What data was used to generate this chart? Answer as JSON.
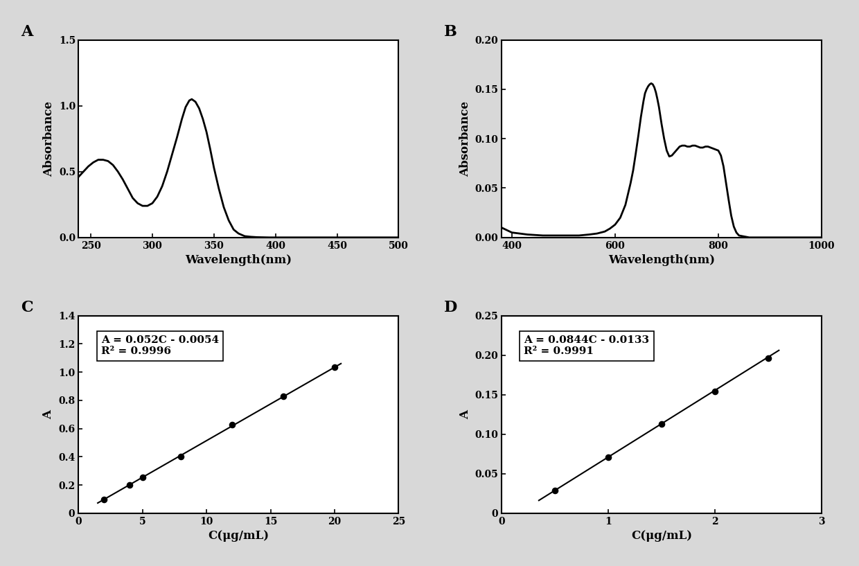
{
  "panel_A": {
    "label": "A",
    "xlabel": "Wavelength(nm)",
    "ylabel": "Absorbance",
    "xlim": [
      240,
      500
    ],
    "ylim": [
      0,
      1.5
    ],
    "xticks": [
      250,
      300,
      350,
      400,
      450,
      500
    ],
    "yticks": [
      0.0,
      0.5,
      1.0,
      1.5
    ],
    "x": [
      240,
      248,
      252,
      256,
      260,
      264,
      268,
      272,
      276,
      280,
      284,
      288,
      292,
      296,
      300,
      304,
      308,
      312,
      316,
      320,
      324,
      327,
      330,
      332,
      335,
      338,
      341,
      344,
      347,
      350,
      354,
      358,
      362,
      366,
      370,
      375,
      380,
      385,
      390,
      395,
      400,
      420,
      440,
      460,
      480,
      500
    ],
    "y": [
      0.46,
      0.54,
      0.57,
      0.59,
      0.59,
      0.58,
      0.55,
      0.5,
      0.44,
      0.37,
      0.3,
      0.26,
      0.24,
      0.24,
      0.26,
      0.31,
      0.39,
      0.5,
      0.63,
      0.76,
      0.9,
      0.99,
      1.04,
      1.05,
      1.03,
      0.98,
      0.9,
      0.8,
      0.67,
      0.53,
      0.37,
      0.23,
      0.13,
      0.06,
      0.03,
      0.01,
      0.005,
      0.002,
      0.001,
      0.0,
      0.0,
      0.0,
      0.0,
      0.0,
      0.0,
      0.0
    ]
  },
  "panel_B": {
    "label": "B",
    "xlabel": "Wavelength(nm)",
    "ylabel": "Absorbance",
    "xlim": [
      380,
      1000
    ],
    "ylim": [
      0,
      0.2
    ],
    "xticks": [
      400,
      600,
      800,
      1000
    ],
    "yticks": [
      0.0,
      0.05,
      0.1,
      0.15,
      0.2
    ],
    "x": [
      380,
      400,
      430,
      460,
      490,
      510,
      530,
      550,
      565,
      580,
      590,
      600,
      610,
      620,
      630,
      635,
      640,
      645,
      650,
      655,
      658,
      661,
      664,
      667,
      670,
      673,
      676,
      679,
      682,
      685,
      690,
      695,
      700,
      705,
      710,
      715,
      720,
      725,
      730,
      735,
      740,
      745,
      750,
      755,
      760,
      765,
      770,
      775,
      780,
      785,
      790,
      795,
      800,
      805,
      810,
      815,
      820,
      825,
      830,
      835,
      840,
      850,
      860,
      870,
      880,
      900,
      920,
      950,
      980,
      1000
    ],
    "y": [
      0.01,
      0.005,
      0.003,
      0.002,
      0.002,
      0.002,
      0.002,
      0.003,
      0.004,
      0.006,
      0.009,
      0.013,
      0.02,
      0.033,
      0.055,
      0.068,
      0.085,
      0.103,
      0.122,
      0.138,
      0.146,
      0.15,
      0.153,
      0.155,
      0.156,
      0.155,
      0.152,
      0.147,
      0.14,
      0.132,
      0.115,
      0.1,
      0.088,
      0.082,
      0.083,
      0.086,
      0.089,
      0.092,
      0.093,
      0.093,
      0.092,
      0.092,
      0.093,
      0.093,
      0.092,
      0.091,
      0.091,
      0.092,
      0.092,
      0.091,
      0.09,
      0.089,
      0.088,
      0.083,
      0.072,
      0.055,
      0.038,
      0.022,
      0.011,
      0.005,
      0.002,
      0.001,
      0.0,
      0.0,
      0.0,
      0.0,
      0.0,
      0.0,
      0.0,
      0.0
    ]
  },
  "panel_C": {
    "label": "C",
    "xlabel": "C(μg/mL)",
    "ylabel": "A",
    "xlim": [
      0,
      25
    ],
    "ylim": [
      0,
      1.4
    ],
    "xticks": [
      0,
      5,
      10,
      15,
      20,
      25
    ],
    "yticks": [
      0,
      0.2,
      0.4,
      0.6,
      0.8,
      1.0,
      1.2,
      1.4
    ],
    "scatter_x": [
      2,
      4,
      5,
      8,
      12,
      16,
      20
    ],
    "scatter_y": [
      0.099,
      0.203,
      0.254,
      0.401,
      0.63,
      0.827,
      1.034
    ],
    "line_x": [
      1.5,
      20.5
    ],
    "slope": 0.052,
    "intercept": -0.0054,
    "equation": "A = 0.052C - 0.0054",
    "r2_text": "R² = 0.9996"
  },
  "panel_D": {
    "label": "D",
    "xlabel": "C(μg/mL)",
    "ylabel": "A",
    "xlim": [
      0,
      3
    ],
    "ylim": [
      0,
      0.25
    ],
    "xticks": [
      0,
      1,
      2,
      3
    ],
    "yticks": [
      0,
      0.05,
      0.1,
      0.15,
      0.2,
      0.25
    ],
    "scatter_x": [
      0.5,
      1.0,
      1.5,
      2.0,
      2.5
    ],
    "scatter_y": [
      0.029,
      0.071,
      0.113,
      0.154,
      0.196
    ],
    "line_x": [
      0.35,
      2.6
    ],
    "slope": 0.0844,
    "intercept": -0.0133,
    "equation": "A = 0.0844C - 0.0133",
    "r2_text": "R² = 0.9991"
  },
  "bg_color": "#f0f0f0",
  "line_color": "#000000",
  "tick_fontsize": 10,
  "label_fontsize": 12,
  "panel_label_fontsize": 16
}
